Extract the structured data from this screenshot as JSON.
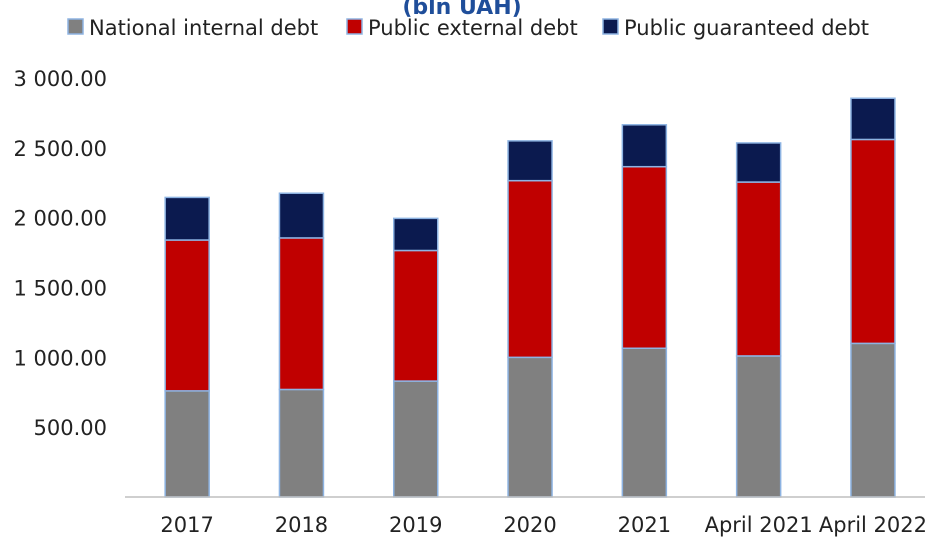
{
  "chart_data": {
    "type": "bar",
    "stacked": true,
    "title": "(bln UAH)",
    "categories": [
      "2017",
      "2018",
      "2019",
      "2020",
      "2021",
      "April 2021",
      "April 2022"
    ],
    "series": [
      {
        "name": "National internal debt",
        "color": "#808080",
        "values": [
          760,
          770,
          830,
          1000,
          1065,
          1010,
          1100
        ]
      },
      {
        "name": "Public external debt",
        "color": "#c00000",
        "values": [
          1080,
          1085,
          935,
          1265,
          1300,
          1245,
          1460
        ]
      },
      {
        "name": "Public guaranteed debt",
        "color": "#0b1a4f",
        "values": [
          305,
          320,
          230,
          285,
          300,
          280,
          295
        ]
      }
    ],
    "y_ticks": [
      "500.00",
      "1 000.00",
      "1 500.00",
      "2 000.00",
      "2 500.00",
      "3 000.00"
    ],
    "ylim": [
      0,
      3000
    ],
    "legend_position": "top",
    "grid": false
  }
}
